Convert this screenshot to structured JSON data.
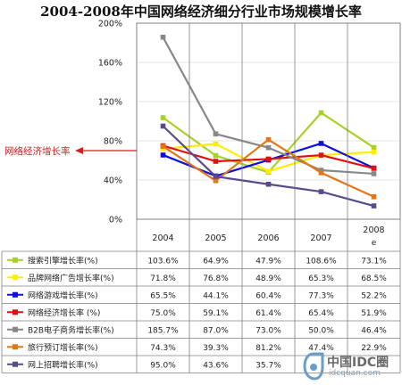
{
  "chart_data": {
    "type": "line",
    "title": "2004-2008年中国网络经济细分行业市场规模增长率",
    "categories": [
      "2004",
      "2005",
      "2006",
      "2007",
      "2008e"
    ],
    "category_lines": [
      [
        "2004"
      ],
      [
        "2005"
      ],
      [
        "2006"
      ],
      [
        "2007"
      ],
      [
        "2008",
        "e"
      ]
    ],
    "y_ticks": [
      "0%",
      "40%",
      "80%",
      "120%",
      "160%",
      "200%"
    ],
    "ylim": [
      0,
      200
    ],
    "callout": "网络经济增长率",
    "series": [
      {
        "name": "搜索引擎增长率(%)",
        "color": "#a6d12a",
        "values": [
          103.6,
          64.9,
          47.9,
          108.6,
          73.1
        ],
        "labels": [
          "103.6%",
          "64.9%",
          "47.9%",
          "108.6%",
          "73.1%"
        ]
      },
      {
        "name": "品牌网络广告增长率(%)",
        "color": "#ffee00",
        "values": [
          71.8,
          76.8,
          48.9,
          65.3,
          68.5
        ],
        "labels": [
          "71.8%",
          "76.8%",
          "48.9%",
          "65.3%",
          "68.5%"
        ]
      },
      {
        "name": "网络游戏增长率(%)",
        "color": "#1010dd",
        "values": [
          65.5,
          44.1,
          60.4,
          77.3,
          52.2
        ],
        "labels": [
          "65.5%",
          "44.1%",
          "60.4%",
          "77.3%",
          "52.2%"
        ]
      },
      {
        "name": "网络经济增长率 (%)",
        "color": "#e01010",
        "values": [
          75.0,
          59.1,
          61.4,
          65.4,
          51.9
        ],
        "labels": [
          "75.0%",
          "59.1%",
          "61.4%",
          "65.4%",
          "51.9%"
        ]
      },
      {
        "name": "B2B电子商务增长率(%)",
        "color": "#888888",
        "values": [
          185.7,
          87.0,
          73.0,
          50.0,
          46.4
        ],
        "labels": [
          "185.7%",
          "87.0%",
          "73.0%",
          "50.0%",
          "46.4%"
        ]
      },
      {
        "name": "旅行预订增长率(%)",
        "color": "#e07818",
        "values": [
          74.3,
          39.3,
          81.2,
          47.4,
          22.9
        ],
        "labels": [
          "74.3%",
          "39.3%",
          "81.2%",
          "47.4%",
          "22.9%"
        ]
      },
      {
        "name": "网上招聘增长率(%)",
        "color": "#5a4a8c",
        "values": [
          95.0,
          43.6,
          35.7,
          28.1,
          13.6
        ],
        "labels": [
          "95.0%",
          "43.6%",
          "35.7%",
          "",
          ""
        ]
      }
    ]
  },
  "watermark": {
    "text": "中国IDC圈",
    "sub": "idcquan.com"
  }
}
